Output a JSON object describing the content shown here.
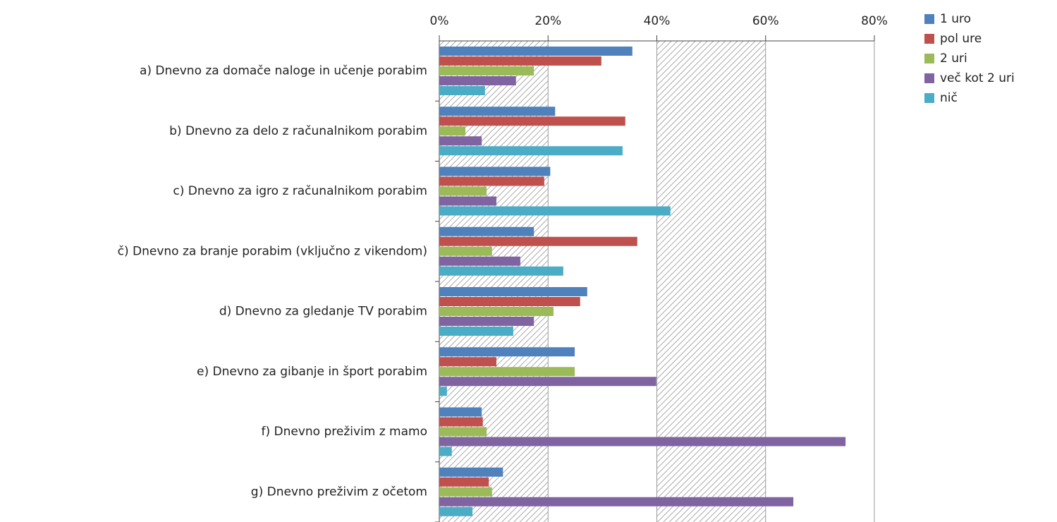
{
  "chart_data": {
    "type": "bar",
    "orientation": "horizontal",
    "categories": [
      "a) Dnevno za domače naloge in učenje porabim",
      "b) Dnevno za delo z računalnikom porabim",
      "c) Dnevno za igro z računalnikom porabim",
      "č) Dnevno za branje porabim (vključno z vikendom)",
      "d) Dnevno za gledanje TV porabim",
      "e) Dnevno za gibanje in šport porabim",
      "f) Dnevno preživim z mamo",
      "g) Dnevno preživim z očetom"
    ],
    "series": [
      {
        "name": "1 uro",
        "color": "#4f81bd",
        "values": [
          35.5,
          21.3,
          20.4,
          17.4,
          27.2,
          24.9,
          7.8,
          11.7
        ]
      },
      {
        "name": "pol ure",
        "color": "#c0504d",
        "values": [
          29.8,
          34.2,
          19.3,
          36.4,
          25.9,
          10.5,
          8.0,
          9.1
        ]
      },
      {
        "name": "2 uri",
        "color": "#9bbb59",
        "values": [
          17.4,
          4.8,
          8.7,
          9.7,
          21.0,
          24.9,
          8.7,
          9.7
        ]
      },
      {
        "name": "več kot 2 uri",
        "color": "#8064a2",
        "values": [
          14.1,
          7.8,
          10.5,
          14.9,
          17.4,
          39.9,
          74.7,
          65.1
        ]
      },
      {
        "name": "nič",
        "color": "#4bacc6",
        "values": [
          8.4,
          33.7,
          42.5,
          22.8,
          13.6,
          1.4,
          2.3,
          6.1
        ]
      }
    ],
    "xlim": [
      0,
      80
    ],
    "xticks": [
      {
        "value": 0,
        "label": "0%"
      },
      {
        "value": 20,
        "label": "20%"
      },
      {
        "value": 40,
        "label": "40%"
      },
      {
        "value": 60,
        "label": "60%"
      },
      {
        "value": 80,
        "label": "80%"
      }
    ],
    "grid": true,
    "legend": "right"
  }
}
